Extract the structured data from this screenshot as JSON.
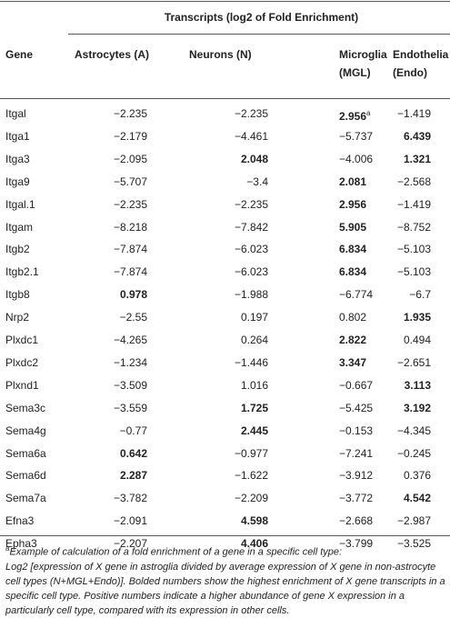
{
  "table": {
    "title": "Transcripts (log2 of Fold Enrichment)",
    "header": [
      "Gene",
      "Astrocytes (A)",
      "Neurons (N)",
      "Microglia\n(MGL)",
      "Endothelia\n(Endo)"
    ],
    "rows": [
      {
        "cells": [
          "Itgal",
          "−2.235",
          "−2.235",
          "2.956",
          "−1.419"
        ],
        "bold": [
          3
        ],
        "superscript": "a"
      },
      {
        "cells": [
          "Itga1",
          "−2.179",
          "−4.461",
          "−5.737",
          "6.439"
        ],
        "bold": [
          4
        ]
      },
      {
        "cells": [
          "Itga3",
          "−2.095",
          "2.048",
          "−4.006",
          "1.321"
        ],
        "bold": [
          2,
          4
        ]
      },
      {
        "cells": [
          "Itga9",
          "−5.707",
          "−3.4",
          "2.081",
          "−2.568"
        ],
        "bold": [
          3
        ]
      },
      {
        "cells": [
          "Itgal.1",
          "−2.235",
          "−2.235",
          "2.956",
          "−1.419"
        ],
        "bold": [
          3
        ]
      },
      {
        "cells": [
          "Itgam",
          "−8.218",
          "−7.842",
          "5.905",
          "−8.752"
        ],
        "bold": [
          3
        ]
      },
      {
        "cells": [
          "Itgb2",
          "−7.874",
          "−6.023",
          "6.834",
          "−5.103"
        ],
        "bold": [
          3
        ]
      },
      {
        "cells": [
          "Itgb2.1",
          "−7.874",
          "−6.023",
          "6.834",
          "−5.103"
        ],
        "bold": [
          3
        ]
      },
      {
        "cells": [
          "Itgb8",
          "0.978",
          "−1.988",
          "−6.774",
          "−6.7"
        ],
        "bold": [
          1
        ]
      },
      {
        "cells": [
          "Nrp2",
          "−2.55",
          "0.197",
          "0.802",
          "1.935"
        ],
        "bold": [
          4
        ]
      },
      {
        "cells": [
          "Plxdc1",
          "−4.265",
          "0.264",
          "2.822",
          "0.494"
        ],
        "bold": [
          3
        ]
      },
      {
        "cells": [
          "Plxdc2",
          "−1.234",
          "−1.446",
          "3.347",
          "−2.651"
        ],
        "bold": [
          3
        ]
      },
      {
        "cells": [
          "Plxnd1",
          "−3.509",
          "1.016",
          "−0.667",
          "3.113"
        ],
        "bold": [
          4
        ]
      },
      {
        "cells": [
          "Sema3c",
          "−3.559",
          "1.725",
          "−5.425",
          "3.192"
        ],
        "bold": [
          2,
          4
        ]
      },
      {
        "cells": [
          "Sema4g",
          "−0.77",
          "2.445",
          "−0.153",
          "−4.345"
        ],
        "bold": [
          2
        ]
      },
      {
        "cells": [
          "Sema6a",
          "0.642",
          "−0.977",
          "−7.241",
          "−0.245"
        ],
        "bold": [
          1
        ]
      },
      {
        "cells": [
          "Sema6d",
          "2.287",
          "−1.622",
          "−3.912",
          "0.376"
        ],
        "bold": [
          1
        ]
      },
      {
        "cells": [
          "Sema7a",
          "−3.782",
          "−2.209",
          "−3.772",
          "4.542"
        ],
        "bold": [
          4
        ]
      },
      {
        "cells": [
          "Efna3",
          "−2.091",
          "4.598",
          "−2.668",
          "−2.987"
        ],
        "bold": [
          2
        ]
      },
      {
        "cells": [
          "Epha3",
          "−2.207",
          "4.406",
          "−3.799",
          "−3.525"
        ],
        "bold": [
          2
        ]
      }
    ],
    "footnote": {
      "marker": "a",
      "lead": "Example of calculation of a fold enrichment of a gene in a specific cell type:",
      "text": "Log2 [expression of X gene in astroglia divided by average expression of X gene in non-astrocyte cell types (N+MGL+Endo)]. Bolded numbers show the highest enrichment of X gene transcripts in a specific cell type. Positive numbers indicate a higher abundance of gene X expression in a particularly cell type, compared with its expression in other cells."
    }
  }
}
